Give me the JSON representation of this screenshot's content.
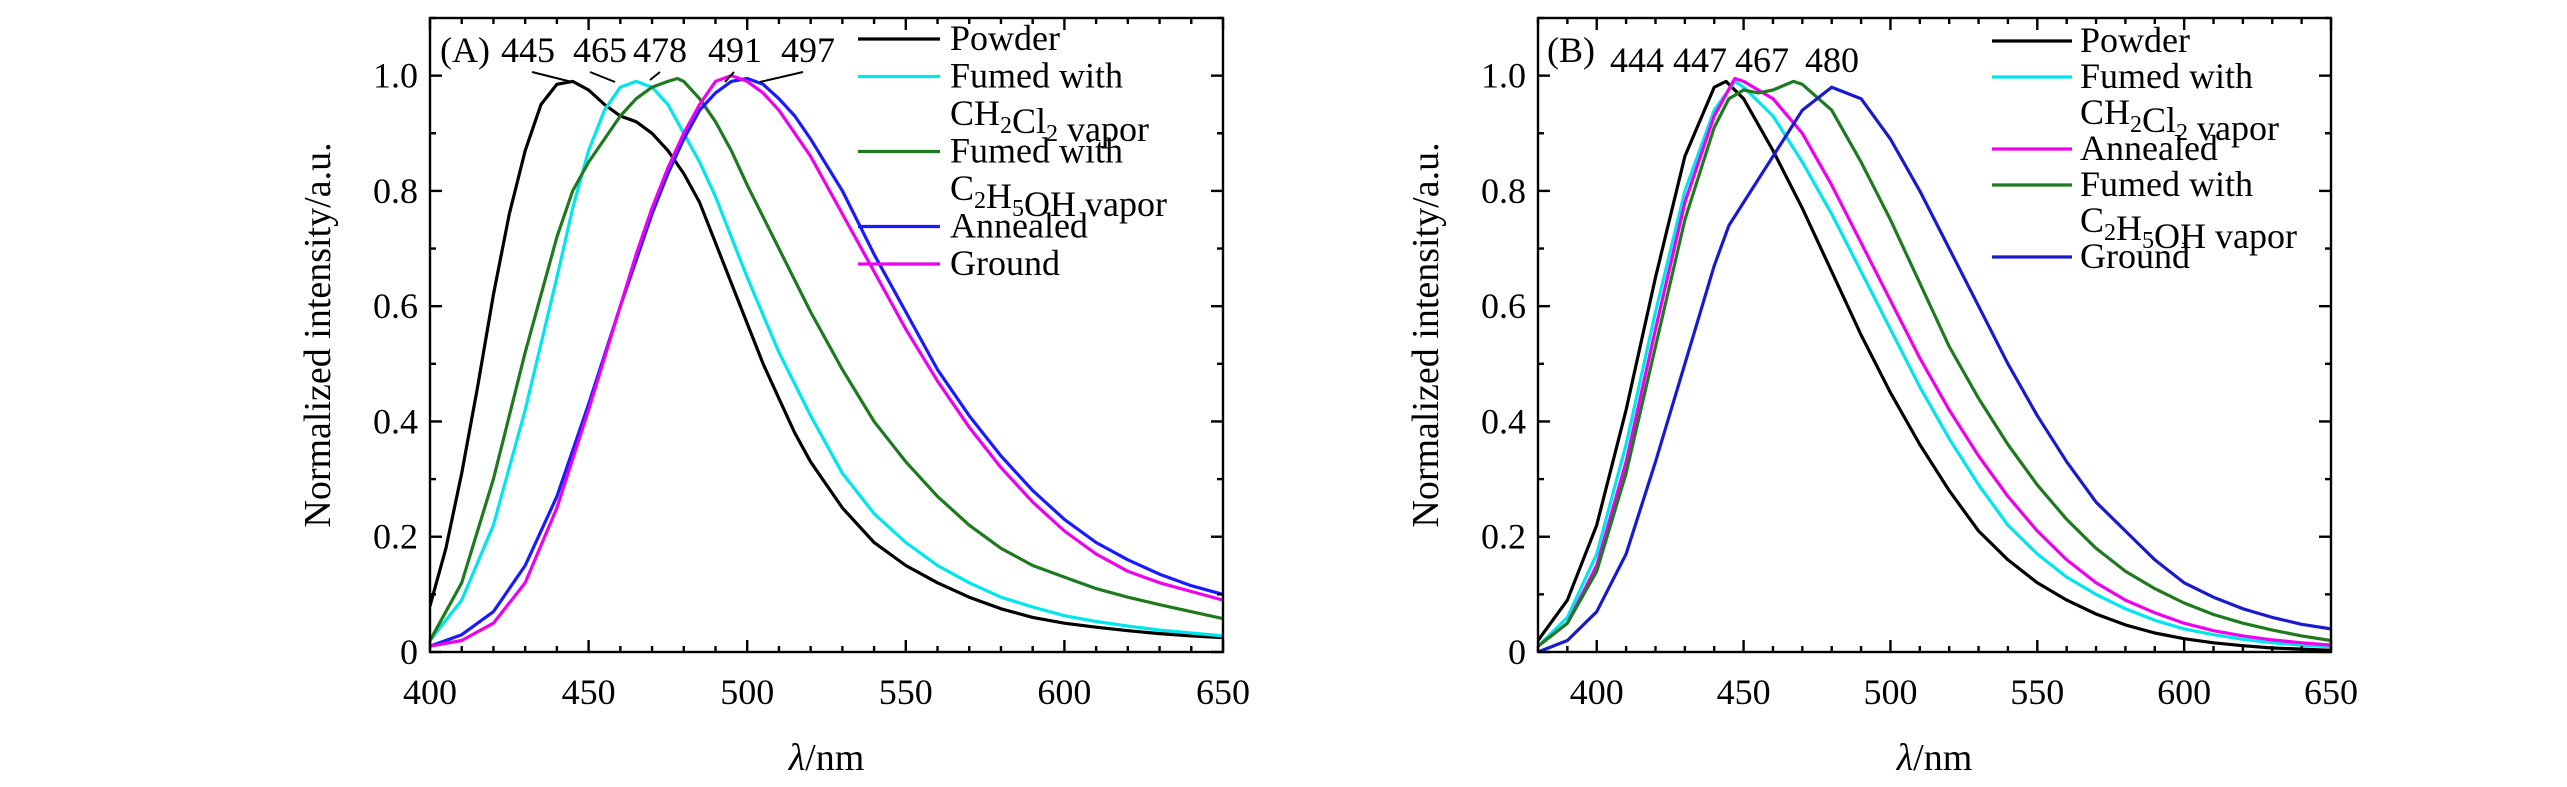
{
  "chart_data": [
    {
      "id": "A",
      "type": "line",
      "panel_label": "(A)",
      "xlabel_italic": "λ",
      "xlabel_rest": "/nm",
      "ylabel": "Normalized intensity/a.u.",
      "xlim": [
        400,
        650
      ],
      "ylim": [
        0,
        1.1
      ],
      "xticks": [
        400,
        450,
        500,
        550,
        600,
        650
      ],
      "xtick_labels": [
        "400",
        "450",
        "500",
        "550",
        "600",
        "650"
      ],
      "yticks": [
        0,
        0.2,
        0.4,
        0.6,
        0.8,
        1.0
      ],
      "ytick_labels": [
        "0",
        "0.2",
        "0.4",
        "0.6",
        "0.8",
        "1.0"
      ],
      "peak_labels": [
        {
          "text": "445",
          "x": 445
        },
        {
          "text": "465",
          "x": 465
        },
        {
          "text": "478",
          "x": 478
        },
        {
          "text": "491",
          "x": 491
        },
        {
          "text": "497",
          "x": 497
        }
      ],
      "legend_location": "top-right",
      "legend": [
        {
          "parts": [
            {
              "t": "Powder"
            }
          ],
          "series": "powder"
        },
        {
          "parts": [
            {
              "t": "Fumed with"
            }
          ],
          "series": "dcm"
        },
        {
          "parts": [
            {
              "t": "CH"
            },
            {
              "t": "2",
              "sub": true
            },
            {
              "t": "Cl"
            },
            {
              "t": "2",
              "sub": true
            },
            {
              "t": " vapor"
            }
          ],
          "series": null
        },
        {
          "parts": [
            {
              "t": "Fumed with"
            }
          ],
          "series": "etoh"
        },
        {
          "parts": [
            {
              "t": "C"
            },
            {
              "t": "2",
              "sub": true
            },
            {
              "t": "H"
            },
            {
              "t": "5",
              "sub": true
            },
            {
              "t": "OH vapor"
            }
          ],
          "series": null
        },
        {
          "parts": [
            {
              "t": "Annealed"
            }
          ],
          "series": "annealed"
        },
        {
          "parts": [
            {
              "t": "Ground"
            }
          ],
          "series": "ground"
        }
      ],
      "series": [
        {
          "key": "powder",
          "name": "Powder",
          "color": "#000000",
          "x": [
            400,
            405,
            410,
            415,
            420,
            425,
            430,
            435,
            440,
            445,
            450,
            455,
            460,
            465,
            470,
            475,
            480,
            485,
            490,
            495,
            500,
            505,
            510,
            515,
            520,
            525,
            530,
            540,
            550,
            560,
            570,
            580,
            590,
            600,
            610,
            620,
            630,
            640,
            650
          ],
          "y": [
            0.08,
            0.18,
            0.31,
            0.46,
            0.62,
            0.76,
            0.87,
            0.95,
            0.985,
            0.99,
            0.975,
            0.95,
            0.93,
            0.92,
            0.9,
            0.87,
            0.83,
            0.78,
            0.71,
            0.64,
            0.57,
            0.5,
            0.44,
            0.38,
            0.33,
            0.29,
            0.25,
            0.19,
            0.15,
            0.12,
            0.095,
            0.075,
            0.06,
            0.05,
            0.043,
            0.037,
            0.032,
            0.028,
            0.025
          ]
        },
        {
          "key": "dcm",
          "name": "Fumed with CH2Cl2 vapor",
          "color": "#00e5ee",
          "x": [
            400,
            410,
            420,
            430,
            440,
            445,
            450,
            455,
            460,
            465,
            470,
            475,
            480,
            485,
            490,
            495,
            500,
            510,
            520,
            530,
            540,
            550,
            560,
            570,
            580,
            590,
            600,
            610,
            620,
            630,
            640,
            650
          ],
          "y": [
            0.02,
            0.09,
            0.22,
            0.42,
            0.65,
            0.77,
            0.87,
            0.94,
            0.98,
            0.99,
            0.98,
            0.95,
            0.9,
            0.85,
            0.79,
            0.72,
            0.65,
            0.52,
            0.41,
            0.31,
            0.24,
            0.19,
            0.15,
            0.12,
            0.095,
            0.078,
            0.063,
            0.053,
            0.045,
            0.038,
            0.033,
            0.028
          ]
        },
        {
          "key": "etoh",
          "name": "Fumed with C2H5OH vapor",
          "color": "#1f7a1f",
          "x": [
            400,
            410,
            420,
            430,
            440,
            445,
            450,
            455,
            460,
            465,
            470,
            475,
            478,
            480,
            485,
            490,
            495,
            500,
            510,
            520,
            530,
            540,
            550,
            560,
            570,
            580,
            590,
            600,
            610,
            620,
            630,
            640,
            650
          ],
          "y": [
            0.02,
            0.12,
            0.3,
            0.52,
            0.72,
            0.8,
            0.85,
            0.89,
            0.93,
            0.96,
            0.98,
            0.99,
            0.995,
            0.99,
            0.96,
            0.92,
            0.87,
            0.81,
            0.7,
            0.59,
            0.49,
            0.4,
            0.33,
            0.27,
            0.22,
            0.18,
            0.15,
            0.13,
            0.11,
            0.095,
            0.082,
            0.07,
            0.058
          ]
        },
        {
          "key": "annealed",
          "name": "Annealed",
          "color": "#1a1aff",
          "x": [
            400,
            410,
            420,
            430,
            440,
            450,
            460,
            465,
            470,
            475,
            480,
            485,
            490,
            495,
            500,
            505,
            510,
            515,
            520,
            530,
            540,
            550,
            560,
            570,
            580,
            590,
            600,
            610,
            620,
            630,
            640,
            650
          ],
          "y": [
            0.01,
            0.03,
            0.07,
            0.15,
            0.27,
            0.43,
            0.6,
            0.68,
            0.76,
            0.83,
            0.89,
            0.94,
            0.97,
            0.99,
            0.995,
            0.985,
            0.96,
            0.93,
            0.89,
            0.8,
            0.69,
            0.59,
            0.49,
            0.41,
            0.34,
            0.28,
            0.23,
            0.19,
            0.16,
            0.135,
            0.115,
            0.1
          ]
        },
        {
          "key": "ground",
          "name": "Ground",
          "color": "#ee00ee",
          "x": [
            400,
            410,
            420,
            430,
            440,
            450,
            460,
            465,
            470,
            475,
            480,
            485,
            490,
            495,
            500,
            505,
            510,
            515,
            520,
            530,
            540,
            550,
            560,
            570,
            580,
            590,
            600,
            610,
            620,
            630,
            640,
            650
          ],
          "y": [
            0.01,
            0.02,
            0.05,
            0.12,
            0.25,
            0.42,
            0.6,
            0.69,
            0.77,
            0.84,
            0.9,
            0.95,
            0.99,
            1.0,
            0.99,
            0.97,
            0.94,
            0.9,
            0.86,
            0.76,
            0.66,
            0.56,
            0.47,
            0.39,
            0.32,
            0.26,
            0.21,
            0.17,
            0.14,
            0.12,
            0.105,
            0.09
          ]
        }
      ]
    },
    {
      "id": "B",
      "type": "line",
      "panel_label": "(B)",
      "xlabel_italic": "λ",
      "xlabel_rest": "/nm",
      "ylabel": "Normalized intensity/a.u.",
      "xlim": [
        380,
        650
      ],
      "ylim": [
        0,
        1.1
      ],
      "xticks": [
        400,
        450,
        500,
        550,
        600,
        650
      ],
      "xtick_labels": [
        "400",
        "450",
        "500",
        "550",
        "600",
        "650"
      ],
      "yticks": [
        0,
        0.2,
        0.4,
        0.6,
        0.8,
        1.0
      ],
      "ytick_labels": [
        "0",
        "0.2",
        "0.4",
        "0.6",
        "0.8",
        "1.0"
      ],
      "peak_labels": [
        {
          "text": "444",
          "x": 444
        },
        {
          "text": "447",
          "x": 447
        },
        {
          "text": "467",
          "x": 467
        },
        {
          "text": "480",
          "x": 480
        }
      ],
      "legend_location": "top-right",
      "legend": [
        {
          "parts": [
            {
              "t": "Powder"
            }
          ],
          "series": "powder"
        },
        {
          "parts": [
            {
              "t": "Fumed with"
            }
          ],
          "series": "dcm"
        },
        {
          "parts": [
            {
              "t": "CH"
            },
            {
              "t": "2",
              "sub": true
            },
            {
              "t": "Cl"
            },
            {
              "t": "2",
              "sub": true
            },
            {
              "t": " vapor"
            }
          ],
          "series": null
        },
        {
          "parts": [
            {
              "t": "Annealed"
            }
          ],
          "series": "annealed"
        },
        {
          "parts": [
            {
              "t": "Fumed with"
            }
          ],
          "series": "etoh"
        },
        {
          "parts": [
            {
              "t": "C"
            },
            {
              "t": "2",
              "sub": true
            },
            {
              "t": "H"
            },
            {
              "t": "5",
              "sub": true
            },
            {
              "t": "OH vapor"
            }
          ],
          "series": null
        },
        {
          "parts": [
            {
              "t": "Ground"
            }
          ],
          "series": "ground"
        }
      ],
      "series": [
        {
          "key": "powder",
          "name": "Powder",
          "color": "#000000",
          "x": [
            380,
            390,
            400,
            410,
            420,
            430,
            440,
            444,
            450,
            460,
            470,
            480,
            490,
            500,
            510,
            520,
            530,
            540,
            550,
            560,
            570,
            580,
            590,
            600,
            610,
            620,
            630,
            640,
            650
          ],
          "y": [
            0.02,
            0.09,
            0.22,
            0.42,
            0.65,
            0.86,
            0.98,
            0.99,
            0.96,
            0.87,
            0.77,
            0.66,
            0.55,
            0.45,
            0.36,
            0.28,
            0.21,
            0.16,
            0.12,
            0.09,
            0.066,
            0.047,
            0.033,
            0.023,
            0.016,
            0.011,
            0.007,
            0.005,
            0.003
          ]
        },
        {
          "key": "dcm",
          "name": "Fumed with CH2Cl2 vapor",
          "color": "#00e5ee",
          "x": [
            380,
            390,
            400,
            410,
            420,
            430,
            440,
            447,
            450,
            460,
            470,
            480,
            490,
            500,
            510,
            520,
            530,
            540,
            550,
            560,
            570,
            580,
            590,
            600,
            610,
            620,
            630,
            640,
            650
          ],
          "y": [
            0.01,
            0.06,
            0.17,
            0.36,
            0.59,
            0.8,
            0.94,
            0.99,
            0.98,
            0.93,
            0.85,
            0.76,
            0.66,
            0.56,
            0.46,
            0.37,
            0.29,
            0.22,
            0.17,
            0.13,
            0.1,
            0.075,
            0.055,
            0.04,
            0.03,
            0.022,
            0.016,
            0.012,
            0.009
          ]
        },
        {
          "key": "annealed",
          "name": "Annealed",
          "color": "#ee00ee",
          "x": [
            380,
            390,
            400,
            410,
            420,
            430,
            440,
            447,
            450,
            460,
            470,
            480,
            490,
            500,
            510,
            520,
            530,
            540,
            550,
            560,
            570,
            580,
            590,
            600,
            610,
            620,
            630,
            640,
            650
          ],
          "y": [
            0.01,
            0.05,
            0.15,
            0.33,
            0.56,
            0.78,
            0.93,
            0.995,
            0.99,
            0.96,
            0.9,
            0.81,
            0.71,
            0.61,
            0.51,
            0.42,
            0.34,
            0.27,
            0.21,
            0.16,
            0.12,
            0.09,
            0.068,
            0.05,
            0.037,
            0.028,
            0.021,
            0.016,
            0.012
          ]
        },
        {
          "key": "etoh",
          "name": "Fumed with C2H5OH vapor",
          "color": "#1f7a1f",
          "x": [
            380,
            390,
            400,
            410,
            420,
            430,
            440,
            445,
            450,
            455,
            460,
            467,
            470,
            480,
            490,
            500,
            510,
            520,
            530,
            540,
            550,
            560,
            570,
            580,
            590,
            600,
            610,
            620,
            630,
            640,
            650
          ],
          "y": [
            0.01,
            0.05,
            0.14,
            0.31,
            0.53,
            0.75,
            0.91,
            0.96,
            0.975,
            0.97,
            0.975,
            0.99,
            0.985,
            0.94,
            0.85,
            0.75,
            0.64,
            0.53,
            0.44,
            0.36,
            0.29,
            0.23,
            0.18,
            0.14,
            0.11,
            0.085,
            0.065,
            0.05,
            0.038,
            0.028,
            0.02
          ]
        },
        {
          "key": "ground",
          "name": "Ground",
          "color": "#1a1acc",
          "x": [
            380,
            390,
            400,
            410,
            420,
            430,
            440,
            445,
            450,
            460,
            470,
            480,
            490,
            500,
            510,
            520,
            530,
            540,
            550,
            560,
            570,
            580,
            590,
            600,
            610,
            620,
            630,
            640,
            650
          ],
          "y": [
            0.0,
            0.02,
            0.07,
            0.17,
            0.33,
            0.5,
            0.67,
            0.74,
            0.78,
            0.86,
            0.94,
            0.98,
            0.96,
            0.89,
            0.8,
            0.7,
            0.6,
            0.5,
            0.41,
            0.33,
            0.26,
            0.21,
            0.16,
            0.12,
            0.095,
            0.075,
            0.06,
            0.048,
            0.04
          ]
        }
      ]
    }
  ]
}
